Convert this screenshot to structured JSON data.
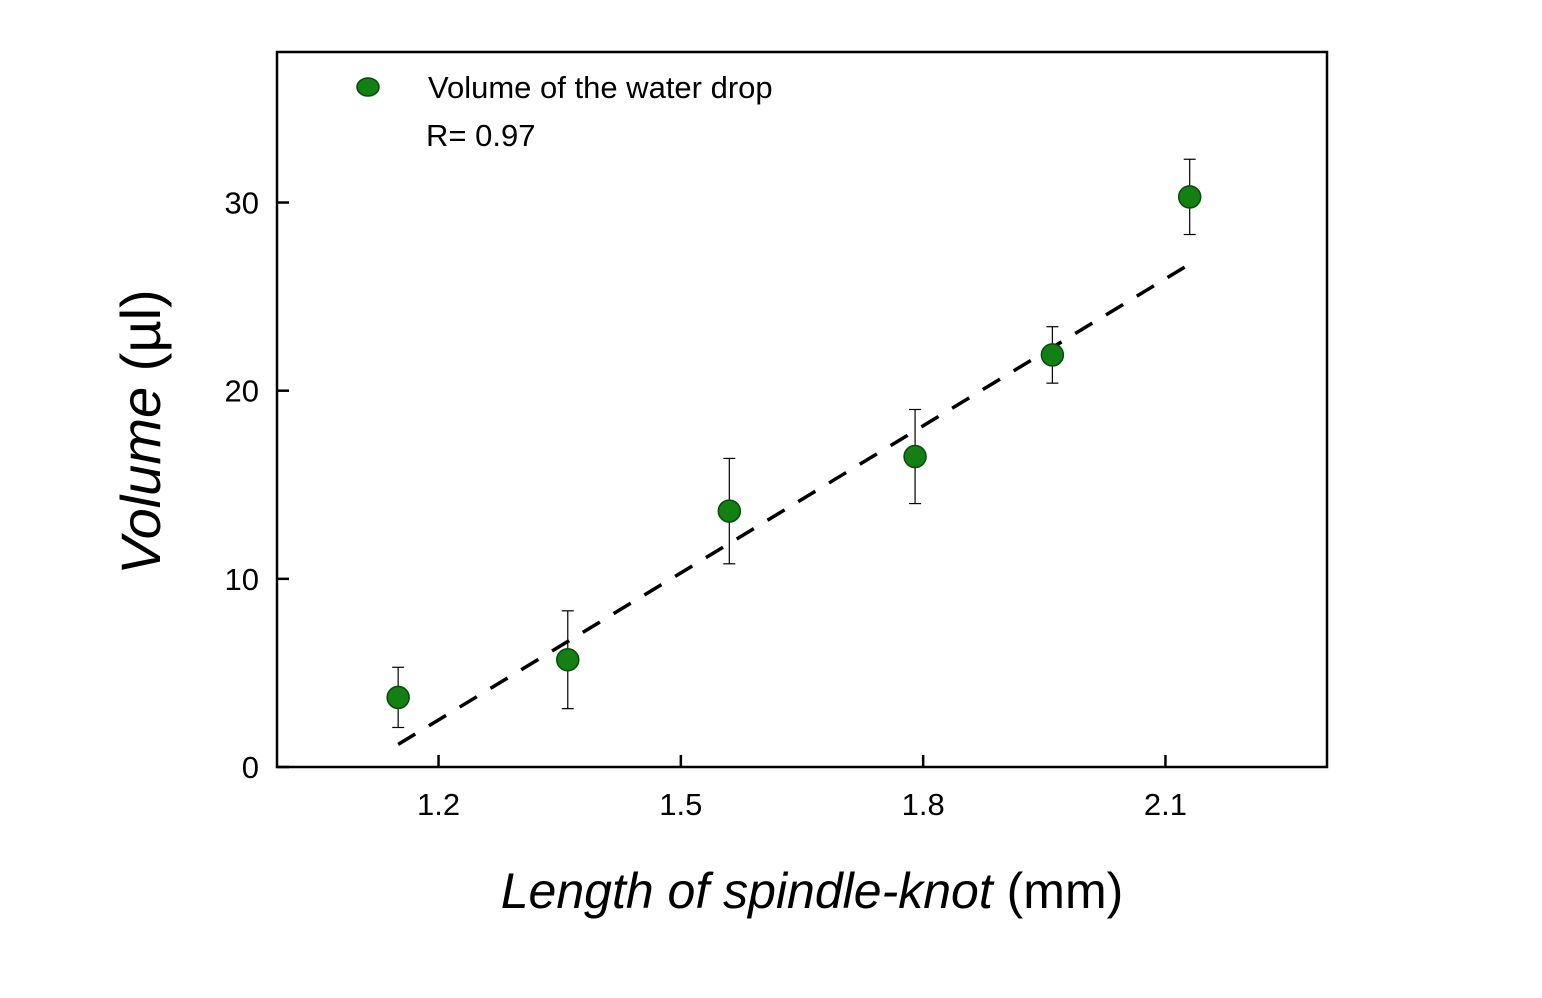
{
  "chart_data": {
    "type": "scatter",
    "xlabel_italic": "Length of spindle-knot",
    "xlabel_unit": "(mm)",
    "ylabel_italic": "Volume",
    "ylabel_unit": "(µl)",
    "xlim": [
      1.0,
      2.3
    ],
    "ylim": [
      0,
      38
    ],
    "xticks": [
      1.2,
      1.5,
      1.8,
      2.1
    ],
    "xtick_labels": [
      "1.2",
      "1.5",
      "1.8",
      "2.1"
    ],
    "yticks": [
      0,
      10,
      20,
      30
    ],
    "ytick_labels": [
      "0",
      "10",
      "20",
      "30"
    ],
    "grid": false,
    "legend_position": "top-left",
    "series": [
      {
        "name": "Volume of the water drop",
        "color": "#128012",
        "x": [
          1.15,
          1.36,
          1.56,
          1.79,
          1.96,
          2.13
        ],
        "y": [
          3.7,
          5.7,
          13.6,
          16.5,
          21.9,
          30.3
        ],
        "error": [
          1.6,
          2.6,
          2.8,
          2.5,
          1.5,
          2.0
        ]
      }
    ],
    "fit_line": {
      "style": "dashed",
      "color": "#000000",
      "x": [
        1.15,
        2.125
      ],
      "y": [
        1.2,
        26.6
      ]
    },
    "annotation": "R= 0.97"
  }
}
